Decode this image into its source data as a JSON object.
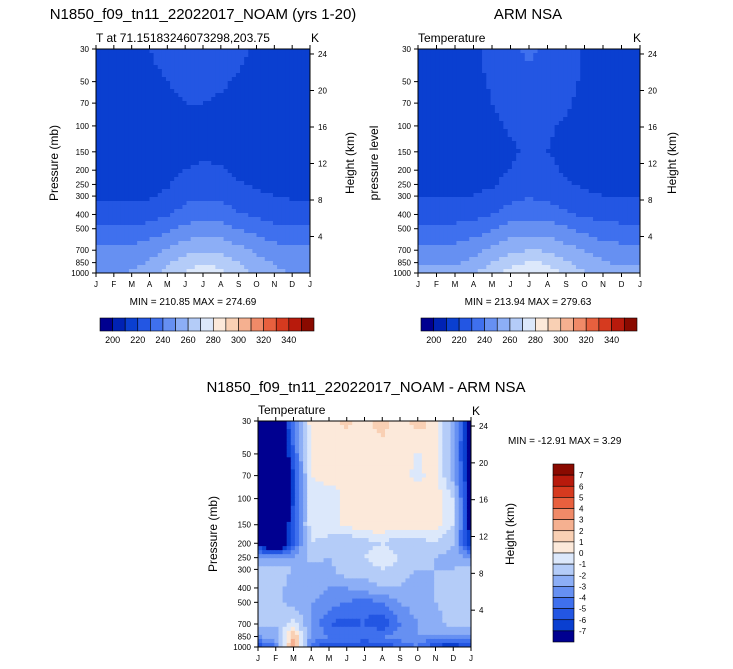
{
  "figure": {
    "panels": [
      {
        "title": "N1850_f09_tn11_22022017_NOAM (yrs 1-20)",
        "left_label": "T at 71.15183246073298,203.75",
        "right_label": "K",
        "ylabel": "Pressure (mb)",
        "ylabel_right": "Height (km)",
        "minmax": "MIN = 210.85 MAX = 274.69"
      },
      {
        "title": "ARM NSA",
        "left_label": "Temperature",
        "right_label": "K",
        "ylabel": "pressure level",
        "ylabel_right": "Height (km)",
        "minmax": "MIN = 213.94 MAX = 279.63"
      },
      {
        "title": "N1850_f09_tn11_22022017_NOAM - ARM NSA",
        "left_label": "Temperature",
        "right_label": "K",
        "ylabel": "Pressure (mb)",
        "ylabel_right": "Height (km)",
        "minmax": "MIN = -12.91 MAX =   3.29"
      }
    ]
  },
  "chart_data": [
    {
      "type": "heatmap",
      "title": "N1850_f09_tn11_22022017_NOAM (yrs 1-20)",
      "variable": "T at 71.15183246073298,203.75",
      "units": "K",
      "xlabel": "",
      "x_ticks": [
        "J",
        "F",
        "M",
        "A",
        "M",
        "J",
        "J",
        "A",
        "S",
        "O",
        "N",
        "D",
        "J"
      ],
      "ylabel": "Pressure (mb)",
      "y_ticks": [
        30,
        50,
        70,
        100,
        150,
        200,
        250,
        300,
        400,
        500,
        700,
        850,
        1000
      ],
      "y2label": "Height (km)",
      "y2_ticks": [
        24,
        20,
        16,
        12,
        8,
        4
      ],
      "min": 210.85,
      "max": 274.69,
      "levels_hPa": [
        30,
        50,
        70,
        100,
        150,
        200,
        250,
        300,
        400,
        500,
        700,
        850,
        1000
      ],
      "months": [
        "J",
        "F",
        "M",
        "A",
        "M",
        "J",
        "J",
        "A",
        "S",
        "O",
        "N",
        "D",
        "J"
      ],
      "values_K": [
        [
          217,
          217,
          218,
          220,
          223,
          225,
          225,
          224,
          222,
          219,
          217,
          217,
          217
        ],
        [
          215,
          215,
          216,
          218,
          220,
          222,
          222,
          221,
          219,
          217,
          216,
          215,
          215
        ],
        [
          214,
          214,
          215,
          216,
          218,
          220,
          220,
          219,
          218,
          216,
          215,
          214,
          214
        ],
        [
          213,
          213,
          213,
          214,
          216,
          218,
          218,
          217,
          216,
          215,
          214,
          213,
          213
        ],
        [
          213,
          213,
          213,
          213,
          214,
          217,
          218,
          217,
          216,
          215,
          214,
          213,
          213
        ],
        [
          214,
          214,
          214,
          214,
          216,
          220,
          222,
          221,
          218,
          216,
          215,
          214,
          214
        ],
        [
          216,
          216,
          216,
          216,
          219,
          224,
          226,
          225,
          221,
          219,
          217,
          216,
          216
        ],
        [
          219,
          219,
          219,
          219,
          222,
          227,
          229,
          228,
          224,
          222,
          220,
          219,
          219
        ],
        [
          224,
          224,
          224,
          225,
          229,
          234,
          236,
          235,
          231,
          228,
          225,
          224,
          224
        ],
        [
          232,
          232,
          232,
          234,
          238,
          243,
          245,
          244,
          240,
          236,
          233,
          232,
          232
        ],
        [
          242,
          242,
          242,
          246,
          251,
          256,
          259,
          258,
          253,
          248,
          244,
          242,
          242
        ],
        [
          246,
          246,
          247,
          251,
          258,
          265,
          269,
          267,
          260,
          254,
          249,
          246,
          246
        ],
        [
          250,
          250,
          251,
          256,
          264,
          271,
          275,
          272,
          264,
          257,
          252,
          250,
          250
        ]
      ],
      "colorbar": {
        "ticks": [
          200,
          220,
          240,
          260,
          280,
          300,
          320,
          340
        ],
        "colors": [
          "#000090",
          "#0022b4",
          "#0a3fd0",
          "#2356e3",
          "#3f70ee",
          "#6690f2",
          "#8caef6",
          "#b4ccf8",
          "#dce8fb",
          "#fce9da",
          "#f9d0b4",
          "#f5b090",
          "#f08a68",
          "#e8603e",
          "#d63a1f",
          "#b81a0c",
          "#8a0a00"
        ]
      }
    },
    {
      "type": "heatmap",
      "title": "ARM NSA",
      "variable": "Temperature",
      "units": "K",
      "xlabel": "",
      "x_ticks": [
        "J",
        "F",
        "M",
        "A",
        "M",
        "J",
        "J",
        "A",
        "S",
        "O",
        "N",
        "D",
        "J"
      ],
      "ylabel": "pressure level",
      "y_ticks": [
        30,
        50,
        70,
        100,
        150,
        200,
        250,
        300,
        400,
        500,
        700,
        850,
        1000
      ],
      "y2label": "Height (km)",
      "y2_ticks": [
        24,
        20,
        16,
        12,
        8,
        4
      ],
      "min": 213.94,
      "max": 279.63,
      "levels_hPa": [
        30,
        50,
        70,
        100,
        150,
        200,
        250,
        300,
        400,
        500,
        700,
        850,
        1000
      ],
      "months": [
        "J",
        "F",
        "M",
        "A",
        "M",
        "J",
        "J",
        "A",
        "S",
        "O",
        "N",
        "D",
        "J"
      ],
      "values_K": [
        [
          216,
          216,
          217,
          219,
          222,
          226,
          233,
          227,
          223,
          219,
          217,
          216,
          216
        ],
        [
          216,
          216,
          216,
          218,
          221,
          224,
          226,
          225,
          222,
          219,
          217,
          216,
          216
        ],
        [
          215,
          215,
          216,
          217,
          220,
          223,
          224,
          223,
          221,
          218,
          216,
          215,
          215
        ],
        [
          215,
          215,
          215,
          216,
          218,
          221,
          222,
          221,
          219,
          217,
          216,
          215,
          215
        ],
        [
          215,
          215,
          215,
          215,
          216,
          219,
          221,
          220,
          218,
          216,
          215,
          215,
          215
        ],
        [
          216,
          216,
          216,
          216,
          217,
          220,
          223,
          222,
          219,
          217,
          216,
          216,
          216
        ],
        [
          218,
          218,
          218,
          218,
          219,
          223,
          226,
          225,
          221,
          219,
          218,
          218,
          218
        ],
        [
          220,
          220,
          220,
          220,
          222,
          227,
          229,
          228,
          224,
          221,
          220,
          220,
          220
        ],
        [
          225,
          225,
          225,
          226,
          230,
          235,
          237,
          236,
          232,
          228,
          226,
          225,
          225
        ],
        [
          233,
          233,
          233,
          235,
          239,
          244,
          246,
          245,
          241,
          237,
          234,
          233,
          233
        ],
        [
          243,
          243,
          243,
          247,
          252,
          257,
          260,
          259,
          254,
          249,
          245,
          243,
          243
        ],
        [
          248,
          248,
          249,
          253,
          260,
          267,
          271,
          269,
          262,
          256,
          251,
          248,
          248
        ],
        [
          253,
          253,
          254,
          259,
          267,
          274,
          279,
          276,
          267,
          260,
          255,
          253,
          253
        ]
      ],
      "colorbar": {
        "ticks": [
          200,
          220,
          240,
          260,
          280,
          300,
          320,
          340
        ],
        "colors": [
          "#000090",
          "#0022b4",
          "#0a3fd0",
          "#2356e3",
          "#3f70ee",
          "#6690f2",
          "#8caef6",
          "#b4ccf8",
          "#dce8fb",
          "#fce9da",
          "#f9d0b4",
          "#f5b090",
          "#f08a68",
          "#e8603e",
          "#d63a1f",
          "#b81a0c",
          "#8a0a00"
        ]
      }
    },
    {
      "type": "heatmap",
      "title": "N1850_f09_tn11_22022017_NOAM - ARM NSA",
      "variable": "Temperature",
      "units": "K",
      "xlabel": "",
      "x_ticks": [
        "J",
        "F",
        "M",
        "A",
        "M",
        "J",
        "J",
        "A",
        "S",
        "O",
        "N",
        "D",
        "J"
      ],
      "ylabel": "Pressure (mb)",
      "y_ticks": [
        30,
        50,
        70,
        100,
        150,
        200,
        250,
        300,
        400,
        500,
        700,
        850,
        1000
      ],
      "y2label": "Height (km)",
      "y2_ticks": [
        24,
        20,
        16,
        12,
        8,
        4
      ],
      "min": -12.91,
      "max": 3.29,
      "levels_hPa": [
        30,
        50,
        70,
        100,
        150,
        200,
        250,
        300,
        400,
        500,
        700,
        850,
        1000
      ],
      "months": [
        "J",
        "F",
        "M",
        "A",
        "M",
        "J",
        "J",
        "A",
        "S",
        "O",
        "N",
        "D",
        "J"
      ],
      "values_K": [
        [
          -8,
          -10,
          -4,
          0.6,
          0.6,
          1.2,
          0.5,
          1.6,
          0.3,
          1.6,
          0.5,
          -2.5,
          -8
        ],
        [
          -8,
          -12,
          -5,
          0.3,
          0.5,
          0.5,
          0.6,
          0.4,
          0.5,
          -0.2,
          0.8,
          -3,
          -8
        ],
        [
          -8,
          -12,
          -6,
          0,
          0.2,
          0,
          0.6,
          0.5,
          0.5,
          -0.3,
          0.5,
          -2.5,
          -8
        ],
        [
          -8,
          -12,
          -6,
          -0.2,
          -0.3,
          0.2,
          0.8,
          0.8,
          0.9,
          0.5,
          0.6,
          -1,
          -8
        ],
        [
          -8,
          -12,
          -5,
          -0.4,
          -0.3,
          0.3,
          0.8,
          0.8,
          0.6,
          0.4,
          0.5,
          -1,
          -8
        ],
        [
          -7,
          -11,
          -5,
          -1,
          -1.5,
          -2,
          -1.5,
          -1,
          -2,
          -1.5,
          -1,
          -2,
          -7
        ],
        [
          -3,
          -3,
          -3,
          -1.5,
          -2,
          -1.5,
          -1,
          0,
          -1,
          -1.5,
          -2,
          -2.5,
          -3
        ],
        [
          -1.5,
          -1.5,
          -2,
          -2.5,
          -2.5,
          -1,
          -1.5,
          -1,
          -1.5,
          -2,
          -2,
          -2,
          -1.5
        ],
        [
          -1.5,
          -1.5,
          -2.5,
          -2.5,
          -3,
          -3,
          -2.5,
          -2,
          -2,
          -2.5,
          -2,
          -1.5,
          -1.5
        ],
        [
          -1.5,
          -1.5,
          -2.5,
          -3,
          -3.5,
          -4,
          -4.5,
          -4,
          -3,
          -2.5,
          -2,
          -1.5,
          -1.5
        ],
        [
          -1.5,
          -2,
          -0.5,
          -3,
          -5,
          -5.5,
          -5,
          -6,
          -4,
          -3,
          -2.5,
          -1.5,
          -1.5
        ],
        [
          -3,
          -2.5,
          2,
          -3,
          -4,
          -4,
          -4,
          -4,
          -3.5,
          -3,
          -3,
          -3,
          -3
        ],
        [
          -6,
          -4,
          3.2,
          -5,
          -6,
          -6,
          -6.5,
          -6,
          -5,
          -4,
          -6.5,
          -7,
          -6
        ]
      ],
      "colorbar": {
        "ticks": [
          7,
          6,
          5,
          4,
          3,
          2,
          1,
          0,
          -1,
          -2,
          -3,
          -4,
          -5,
          -6,
          -7
        ],
        "colors": [
          "#8a0a00",
          "#b81a0c",
          "#d63a1f",
          "#e8603e",
          "#f08a68",
          "#f5b090",
          "#f9d0b4",
          "#fce9da",
          "#dce8fb",
          "#b4ccf8",
          "#8caef6",
          "#6690f2",
          "#3f70ee",
          "#2356e3",
          "#0a3fd0",
          "#000090"
        ]
      }
    }
  ]
}
